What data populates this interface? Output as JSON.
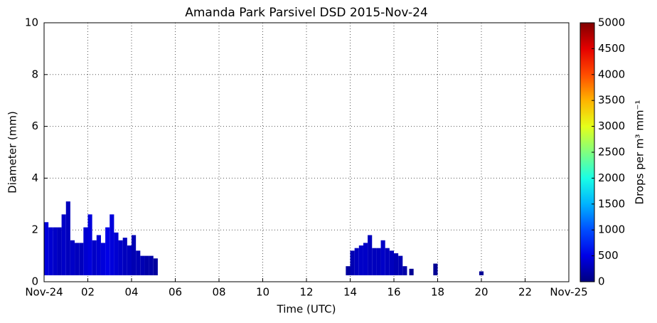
{
  "chart_data": {
    "type": "heatmap",
    "title": "Amanda Park Parsivel DSD 2015-Nov-24",
    "x_label": "Time (UTC)",
    "y_label": "Diameter (mm)",
    "colorbar_label": "Drops per m³ mm⁻¹",
    "colormap": "jet",
    "x": [
      0,
      0.2,
      0.4,
      0.6,
      0.8,
      1.0,
      1.2,
      1.4,
      1.6,
      1.8,
      2.0,
      2.2,
      2.4,
      2.6,
      2.8,
      3.0,
      3.2,
      3.4,
      3.6,
      3.8,
      4.0,
      4.2,
      4.4,
      4.6,
      4.8,
      5.0,
      13.8,
      14.0,
      14.2,
      14.4,
      14.6,
      14.8,
      15.0,
      15.2,
      15.4,
      15.6,
      15.8,
      16.0,
      16.2,
      16.4,
      16.7,
      17.8,
      19.9
    ],
    "bin_width": 0.2,
    "y_bottom": 0.25,
    "top_diameter": [
      2.3,
      2.1,
      2.1,
      2.1,
      2.6,
      3.1,
      1.6,
      1.5,
      1.5,
      2.1,
      2.6,
      1.6,
      1.8,
      1.5,
      2.1,
      2.6,
      1.9,
      1.6,
      1.7,
      1.4,
      1.8,
      1.2,
      1.0,
      1.0,
      1.0,
      0.9,
      0.6,
      1.2,
      1.3,
      1.4,
      1.5,
      1.8,
      1.3,
      1.3,
      1.6,
      1.3,
      1.2,
      1.1,
      1.0,
      0.6,
      0.5,
      0.7,
      0.4
    ],
    "values": [
      450,
      400,
      350,
      300,
      350,
      300,
      350,
      300,
      300,
      400,
      450,
      350,
      400,
      450,
      500,
      450,
      400,
      350,
      300,
      300,
      250,
      250,
      250,
      200,
      200,
      150,
      150,
      250,
      300,
      350,
      350,
      300,
      300,
      300,
      350,
      300,
      300,
      250,
      250,
      200,
      100,
      100,
      100
    ],
    "xlim": [
      0,
      24
    ],
    "ylim": [
      0,
      10
    ],
    "clim": [
      0,
      5000
    ],
    "xticks": [
      {
        "value": 0,
        "label": "Nov-24"
      },
      {
        "value": 2,
        "label": "02"
      },
      {
        "value": 4,
        "label": "04"
      },
      {
        "value": 6,
        "label": "06"
      },
      {
        "value": 8,
        "label": "08"
      },
      {
        "value": 10,
        "label": "10"
      },
      {
        "value": 12,
        "label": "12"
      },
      {
        "value": 14,
        "label": "14"
      },
      {
        "value": 16,
        "label": "16"
      },
      {
        "value": 18,
        "label": "18"
      },
      {
        "value": 20,
        "label": "20"
      },
      {
        "value": 22,
        "label": "22"
      },
      {
        "value": 24,
        "label": "Nov-25"
      }
    ],
    "yticks": [
      0,
      2,
      4,
      6,
      8,
      10
    ],
    "cticks": [
      0,
      500,
      1000,
      1500,
      2000,
      2500,
      3000,
      3500,
      4000,
      4500,
      5000
    ],
    "grid": true
  }
}
